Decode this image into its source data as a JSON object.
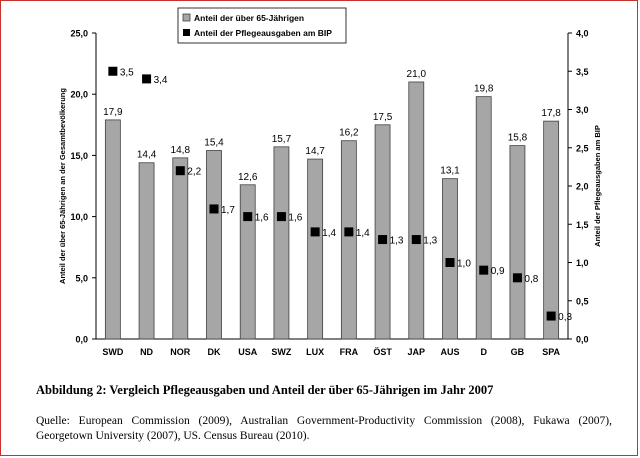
{
  "chart_data": {
    "type": "bar",
    "categories": [
      "SWD",
      "ND",
      "NOR",
      "DK",
      "USA",
      "SWZ",
      "LUX",
      "FRA",
      "ÖST",
      "JAP",
      "AUS",
      "D",
      "GB",
      "SPA"
    ],
    "series": [
      {
        "name": "Anteil der über 65-Jährigen",
        "axis": "left",
        "values": [
          17.9,
          14.4,
          14.8,
          15.4,
          12.6,
          15.7,
          14.7,
          16.2,
          17.5,
          21.0,
          13.1,
          19.8,
          15.8,
          17.8
        ],
        "labels": [
          "17,9",
          "14,4",
          "14,8",
          "15,4",
          "12,6",
          "15,7",
          "14,7",
          "16,2",
          "17,5",
          "21,0",
          "13,1",
          "19,8",
          "15,8",
          "17,8"
        ],
        "color": "#a6a6a6"
      },
      {
        "name": "Anteil der Pflegeausgaben am BIP",
        "axis": "right",
        "values": [
          3.5,
          3.4,
          2.2,
          1.7,
          1.6,
          1.6,
          1.4,
          1.4,
          1.3,
          1.3,
          1.0,
          0.9,
          0.8,
          0.3
        ],
        "labels": [
          "3,5",
          "3,4",
          "2,2",
          "1,7",
          "1,6",
          "1,6",
          "1,4",
          "1,4",
          "1,3",
          "1,3",
          "1,0",
          "0,9",
          "0,8",
          "0,3"
        ],
        "color": "#000000"
      }
    ],
    "ylabel": "Anteil der über 65-Jährigen an der Gesamtbevölkerung",
    "ylabel_right": "Anteil der Pflegeausgaben am BIP",
    "ylim": [
      0,
      25
    ],
    "ylim_right": [
      0,
      4
    ],
    "yticks": [
      "0,0",
      "5,0",
      "10,0",
      "15,0",
      "20,0",
      "25,0"
    ],
    "yticks_right": [
      "0,0",
      "0,5",
      "1,0",
      "1,5",
      "2,0",
      "2,5",
      "3,0",
      "3,5",
      "4,0"
    ],
    "grid": false,
    "legend_position": "top-center"
  },
  "caption": "Abbildung 2: Vergleich Pflegeausgaben und Anteil der über 65-Jährigen im Jahr 2007",
  "source": "Quelle: European Commission (2009), Australian Government-Productivity Commission (2008), Fukawa (2007), Georgetown University (2007), US. Census Bureau (2010)."
}
